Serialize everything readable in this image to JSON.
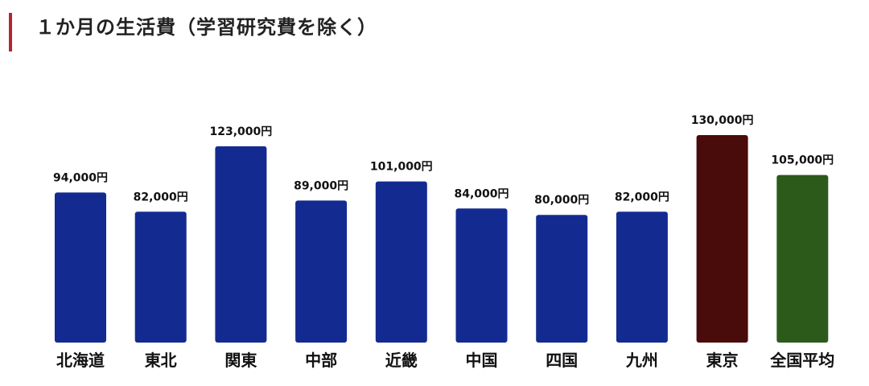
{
  "chart_data": {
    "type": "bar",
    "title": "１か月の生活費（学習研究費を除く）",
    "unit": "円",
    "categories": [
      "北海道",
      "東北",
      "関東",
      "中部",
      "近畿",
      "中国",
      "四国",
      "九州",
      "東京",
      "全国平均"
    ],
    "values": [
      94000,
      82000,
      123000,
      89000,
      101000,
      84000,
      80000,
      82000,
      130000,
      105000
    ],
    "value_labels": [
      "94,000円",
      "82,000円",
      "123,000円",
      "89,000円",
      "101,000円",
      "84,000円",
      "80,000円",
      "82,000円",
      "130,000円",
      "105,000円"
    ],
    "colors": [
      "#132b91",
      "#132b91",
      "#132b91",
      "#132b91",
      "#132b91",
      "#132b91",
      "#132b91",
      "#132b91",
      "#4a0b0b",
      "#2b5a1b"
    ],
    "accent_color": "#b0282f",
    "ylim": [
      0,
      130000
    ],
    "grid": false,
    "legend": "none"
  }
}
